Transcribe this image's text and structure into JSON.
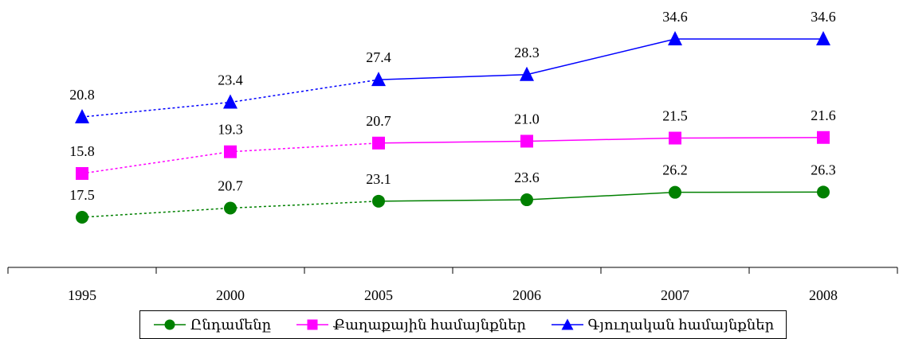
{
  "chart_data": {
    "type": "line",
    "categories": [
      "1995",
      "2000",
      "2005",
      "2006",
      "2007",
      "2008"
    ],
    "series": [
      {
        "name": "Ընդամենը",
        "color": "#008000",
        "marker": "circle",
        "values": [
          17.5,
          20.7,
          23.1,
          23.6,
          26.2,
          26.3
        ],
        "labels": [
          "17.5",
          "20.7",
          "23.1",
          "23.6",
          "26.2",
          "26.3"
        ]
      },
      {
        "name": "Քաղաքային համայնքներ",
        "color": "#FF00FF",
        "marker": "square",
        "values": [
          15.8,
          19.3,
          20.7,
          21.0,
          21.5,
          21.6
        ],
        "labels": [
          "15.8",
          "19.3",
          "20.7",
          "21.0",
          "21.5",
          "21.6"
        ]
      },
      {
        "name": "Գյուղական համայնքներ",
        "color": "#0000FF",
        "marker": "triangle",
        "values": [
          20.8,
          23.4,
          27.4,
          28.3,
          34.6,
          34.6
        ],
        "labels": [
          "20.8",
          "23.4",
          "27.4",
          "28.3",
          "34.6",
          "34.6"
        ]
      }
    ],
    "dashed_segments_until_category": "2005",
    "legend_position": "bottom",
    "grid": false
  }
}
